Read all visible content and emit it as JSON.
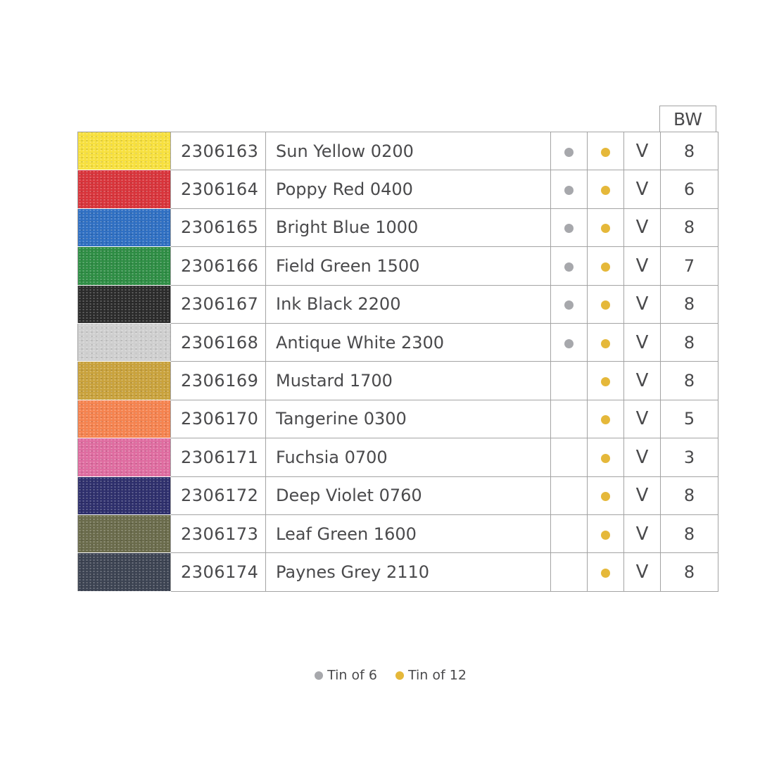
{
  "header": {
    "bw": "BW"
  },
  "colors": {
    "tin6": "#a7a8ac",
    "tin12": "#e5b83a",
    "text": "#4a4a4c",
    "border": "#a3a3a3"
  },
  "rows": [
    {
      "swatch": "#f7e03e",
      "code": "2306163",
      "name": "Sun Yellow 0200",
      "tin6": true,
      "tin12": true,
      "v": "V",
      "bw": "8"
    },
    {
      "swatch": "#d8343b",
      "code": "2306164",
      "name": "Poppy Red 0400",
      "tin6": true,
      "tin12": true,
      "v": "V",
      "bw": "6"
    },
    {
      "swatch": "#2f6fc2",
      "code": "2306165",
      "name": "Bright Blue 1000",
      "tin6": true,
      "tin12": true,
      "v": "V",
      "bw": "8"
    },
    {
      "swatch": "#2e8d44",
      "code": "2306166",
      "name": "Field Green 1500",
      "tin6": true,
      "tin12": true,
      "v": "V",
      "bw": "7"
    },
    {
      "swatch": "#2b2b2b",
      "code": "2306167",
      "name": "Ink Black 2200",
      "tin6": true,
      "tin12": true,
      "v": "V",
      "bw": "8"
    },
    {
      "swatch": "#cfcfcf",
      "code": "2306168",
      "name": "Antique White 2300",
      "tin6": true,
      "tin12": true,
      "v": "V",
      "bw": "8"
    },
    {
      "swatch": "#c9a23c",
      "code": "2306169",
      "name": "Mustard 1700",
      "tin6": false,
      "tin12": true,
      "v": "V",
      "bw": "8"
    },
    {
      "swatch": "#f5834f",
      "code": "2306170",
      "name": "Tangerine 0300",
      "tin6": false,
      "tin12": true,
      "v": "V",
      "bw": "5"
    },
    {
      "swatch": "#df6ca0",
      "code": "2306171",
      "name": "Fuchsia 0700",
      "tin6": false,
      "tin12": true,
      "v": "V",
      "bw": "3"
    },
    {
      "swatch": "#2e2f6c",
      "code": "2306172",
      "name": "Deep Violet 0760",
      "tin6": false,
      "tin12": true,
      "v": "V",
      "bw": "8"
    },
    {
      "swatch": "#6a6b4b",
      "code": "2306173",
      "name": "Leaf Green 1600",
      "tin6": false,
      "tin12": true,
      "v": "V",
      "bw": "8"
    },
    {
      "swatch": "#3c4352",
      "code": "2306174",
      "name": "Paynes Grey 2110",
      "tin6": false,
      "tin12": true,
      "v": "V",
      "bw": "8"
    }
  ],
  "legend": {
    "tin6": "Tin of 6",
    "tin12": "Tin of 12"
  }
}
